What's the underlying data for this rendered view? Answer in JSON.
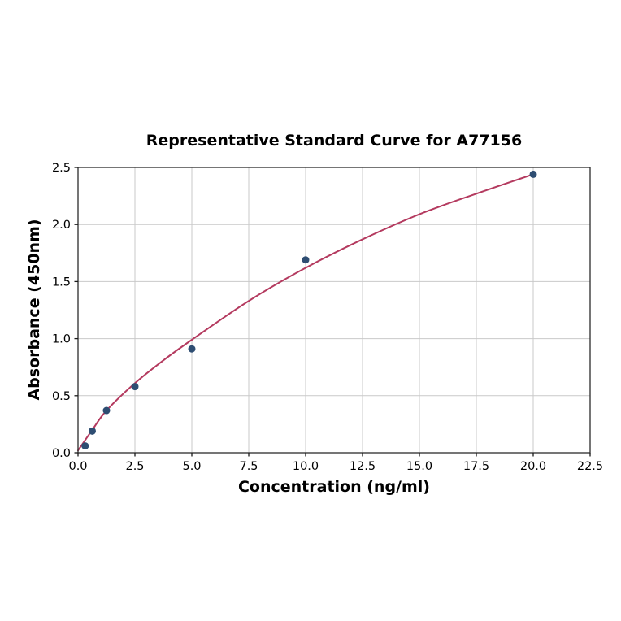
{
  "chart_data": {
    "type": "scatter",
    "title": "Representative Standard Curve for A77156",
    "xlabel": "Concentration (ng/ml)",
    "ylabel": "Absorbance (450nm)",
    "xlim": [
      0,
      22.5
    ],
    "ylim": [
      0,
      2.5
    ],
    "grid": true,
    "legend": "none",
    "x_ticks": {
      "values": [
        0,
        2.5,
        5,
        7.5,
        10,
        12.5,
        15,
        17.5,
        20,
        22.5
      ],
      "labels": [
        "0.0",
        "2.5",
        "5.0",
        "7.5",
        "10.0",
        "12.5",
        "15.0",
        "17.5",
        "20.0",
        "22.5"
      ]
    },
    "y_ticks": {
      "values": [
        0,
        0.5,
        1,
        1.5,
        2,
        2.5
      ],
      "labels": [
        "0.0",
        "0.5",
        "1.0",
        "1.5",
        "2.0",
        "2.5"
      ]
    },
    "series": [
      {
        "name": "standard-points",
        "type": "scatter",
        "color": "#2e4d72",
        "marker_radius": 4.5,
        "x": [
          0.313,
          0.625,
          1.25,
          2.5,
          5,
          10,
          20
        ],
        "y": [
          0.06,
          0.19,
          0.37,
          0.58,
          0.91,
          1.69,
          2.44
        ]
      },
      {
        "name": "fitted-curve",
        "type": "line",
        "color": "#b43a5f",
        "width": 2,
        "x": [
          0,
          0.625,
          1.25,
          2.5,
          3.75,
          5,
          7.5,
          10,
          12.5,
          15,
          17.5,
          20
        ],
        "y": [
          0.02,
          0.2,
          0.37,
          0.61,
          0.81,
          0.99,
          1.33,
          1.62,
          1.87,
          2.09,
          2.27,
          2.44
        ]
      }
    ],
    "colors": {
      "grid": "#c9c9c9",
      "spine": "#2b2b2b",
      "tick": "#1a1a1a",
      "tick_text": "#000000",
      "background": "#ffffff"
    }
  }
}
